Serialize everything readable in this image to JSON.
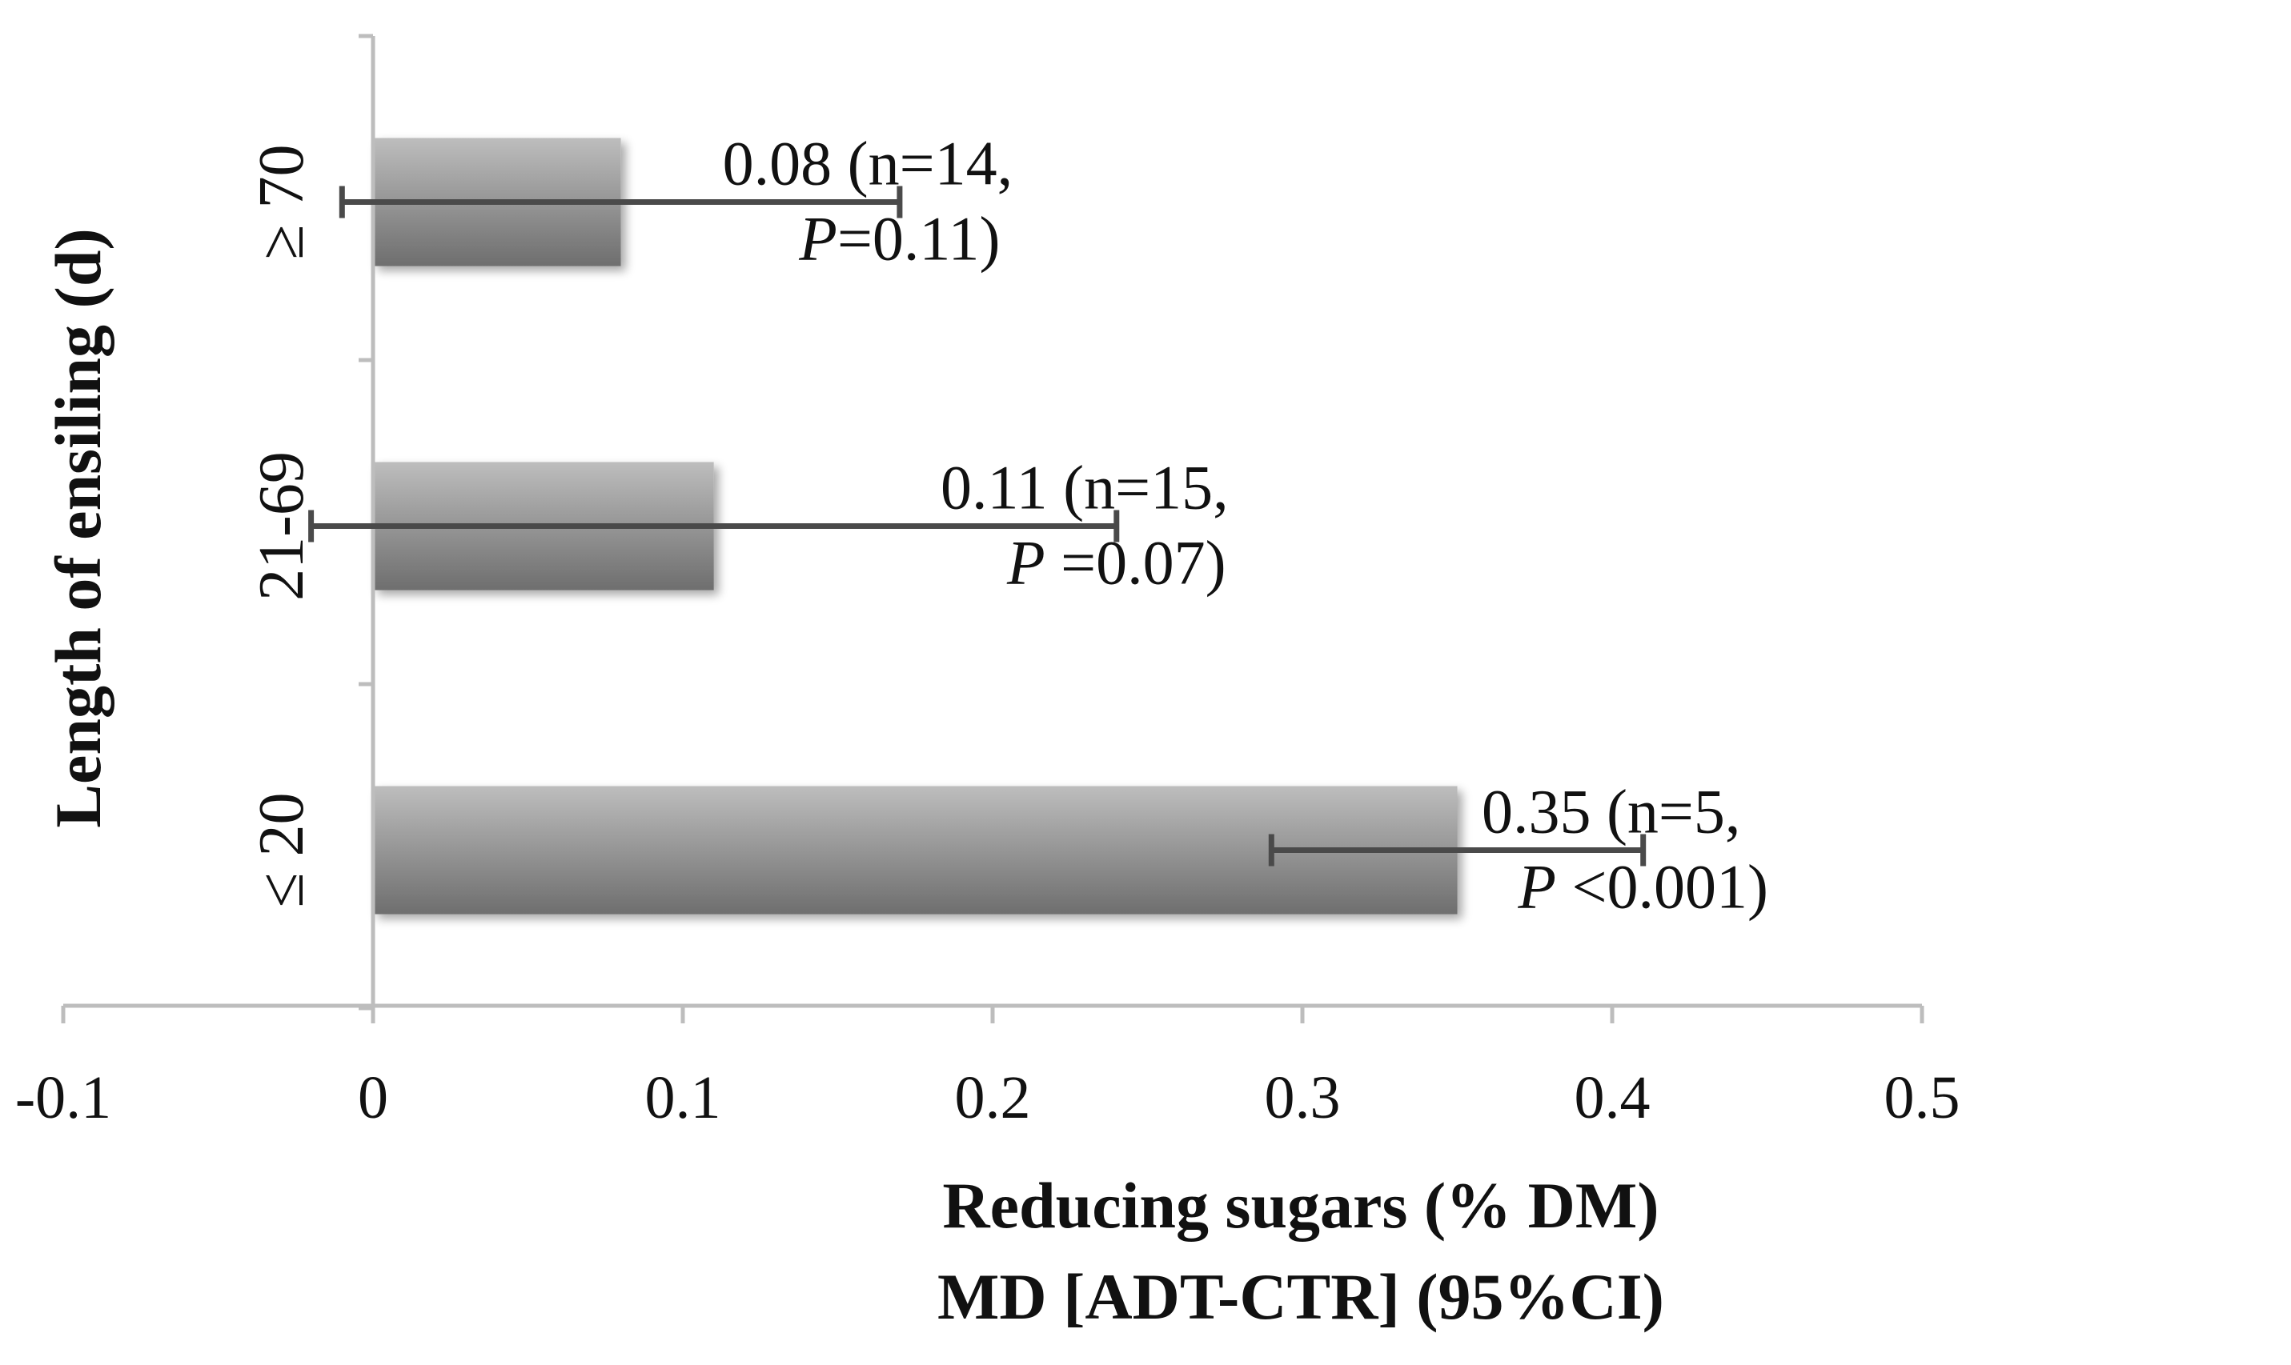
{
  "chart_data": {
    "type": "bar",
    "orientation": "horizontal",
    "categories": [
      "≥ 70",
      "21-69",
      "≤ 20"
    ],
    "values": [
      0.08,
      0.11,
      0.35
    ],
    "ci_low": [
      -0.01,
      -0.02,
      0.29
    ],
    "ci_high": [
      0.17,
      0.24,
      0.41
    ],
    "annotations": [
      {
        "line1": "0.08 (n=14,",
        "p_italic": "P",
        "p_rest": "=0.11)"
      },
      {
        "line1": "0.11 (n=15,",
        "p_italic": "P",
        "p_rest": " =0.07)"
      },
      {
        "line1": "0.35 (n=5,",
        "p_italic": "P",
        "p_rest": " <0.001)"
      }
    ],
    "xlim": [
      -0.1,
      0.5
    ],
    "xticks": [
      -0.1,
      0,
      0.1,
      0.2,
      0.3,
      0.4,
      0.5
    ],
    "xtick_labels": [
      "-0.1",
      "0",
      "0.1",
      "0.2",
      "0.3",
      "0.4",
      "0.5"
    ],
    "xlabel_line1": "Reducing sugars (% DM)",
    "xlabel_line2": "MD [ADT-CTR] (95%CI)",
    "ylabel": "Length of ensiling (d)",
    "bar_color_light": "#bdbdbd",
    "bar_color_dark": "#6e6e6e",
    "grid": false,
    "legend": "none"
  }
}
